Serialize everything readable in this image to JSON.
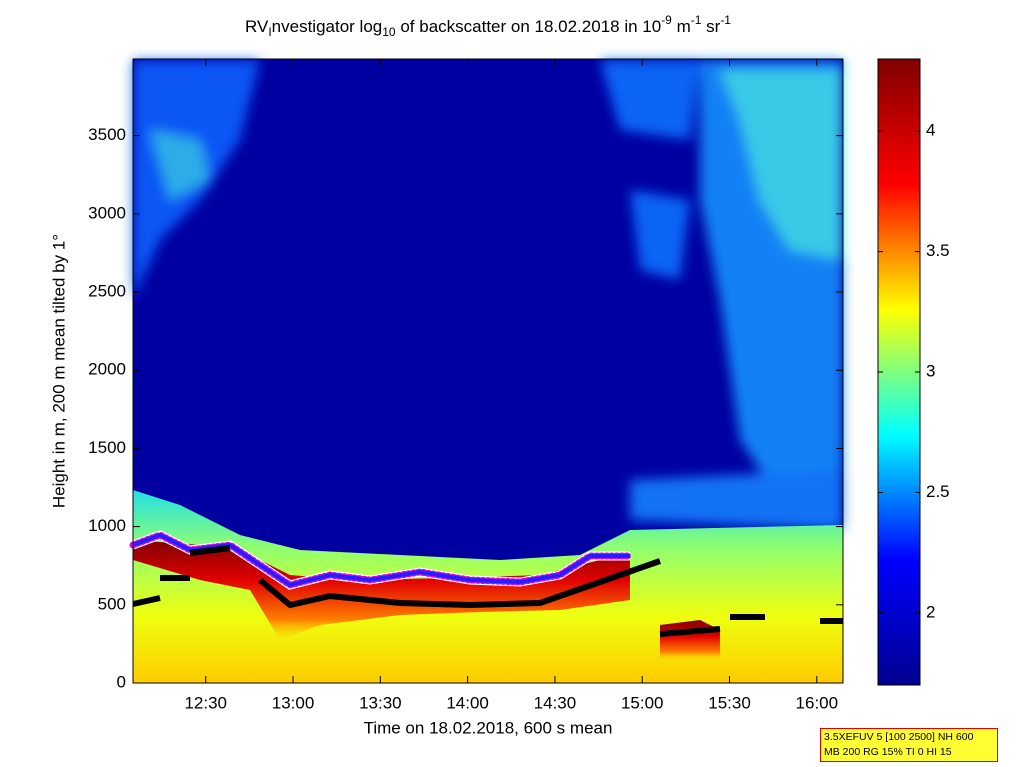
{
  "chart_data": {
    "type": "heatmap",
    "title_parts": [
      "RV",
      "I",
      "nvestigator log",
      "10",
      " of backscatter on 18.02.2018 in 10",
      "-9",
      " m",
      "-1",
      " sr",
      "-1"
    ],
    "x_label": "Time on 18.02.2018, 600 s mean",
    "y_label": "Height in m, 200 m mean tilted by 1°",
    "xlim": [
      725,
      969
    ],
    "xticks": [
      {
        "value": 750,
        "label": "12:30"
      },
      {
        "value": 780,
        "label": "13:00"
      },
      {
        "value": 810,
        "label": "13:30"
      },
      {
        "value": 840,
        "label": "14:00"
      },
      {
        "value": 870,
        "label": "14:30"
      },
      {
        "value": 900,
        "label": "15:00"
      },
      {
        "value": 930,
        "label": "15:30"
      },
      {
        "value": 960,
        "label": "16:00"
      }
    ],
    "ylim": [
      0,
      3990
    ],
    "yticks": [
      0,
      500,
      1000,
      1500,
      2000,
      2500,
      3000,
      3500
    ],
    "clim": [
      1.7,
      4.3
    ],
    "cticks": [
      2,
      2.5,
      3,
      3.5,
      4
    ],
    "colormap": [
      "#00008f",
      "#0000ff",
      "#00ffff",
      "#ffff00",
      "#ff0000",
      "#800000"
    ],
    "annotation": [
      "3.5XEFUV 5 [100 2500] NH 600",
      "MB 200 RG 15% TI 0 HI 15"
    ]
  }
}
